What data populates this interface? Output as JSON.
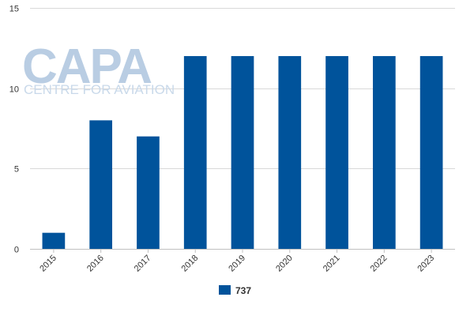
{
  "watermark": {
    "logo": "CAPA",
    "subtitle": "CENTRE FOR AVIATION"
  },
  "chart_data": {
    "type": "bar",
    "categories": [
      "2015",
      "2016",
      "2017",
      "2018",
      "2019",
      "2020",
      "2021",
      "2022",
      "2023"
    ],
    "series": [
      {
        "name": "737",
        "values": [
          1,
          8,
          7,
          12,
          12,
          12,
          12,
          12,
          12
        ]
      }
    ],
    "title": "",
    "xlabel": "",
    "ylabel": "",
    "ylim": [
      0,
      15
    ],
    "yticks": [
      0,
      5,
      10,
      15
    ],
    "grid": true,
    "legend": "bottom",
    "colors": {
      "series": "#00539b",
      "grid": "#d9d9d9",
      "axis": "#c0c0c0"
    }
  }
}
